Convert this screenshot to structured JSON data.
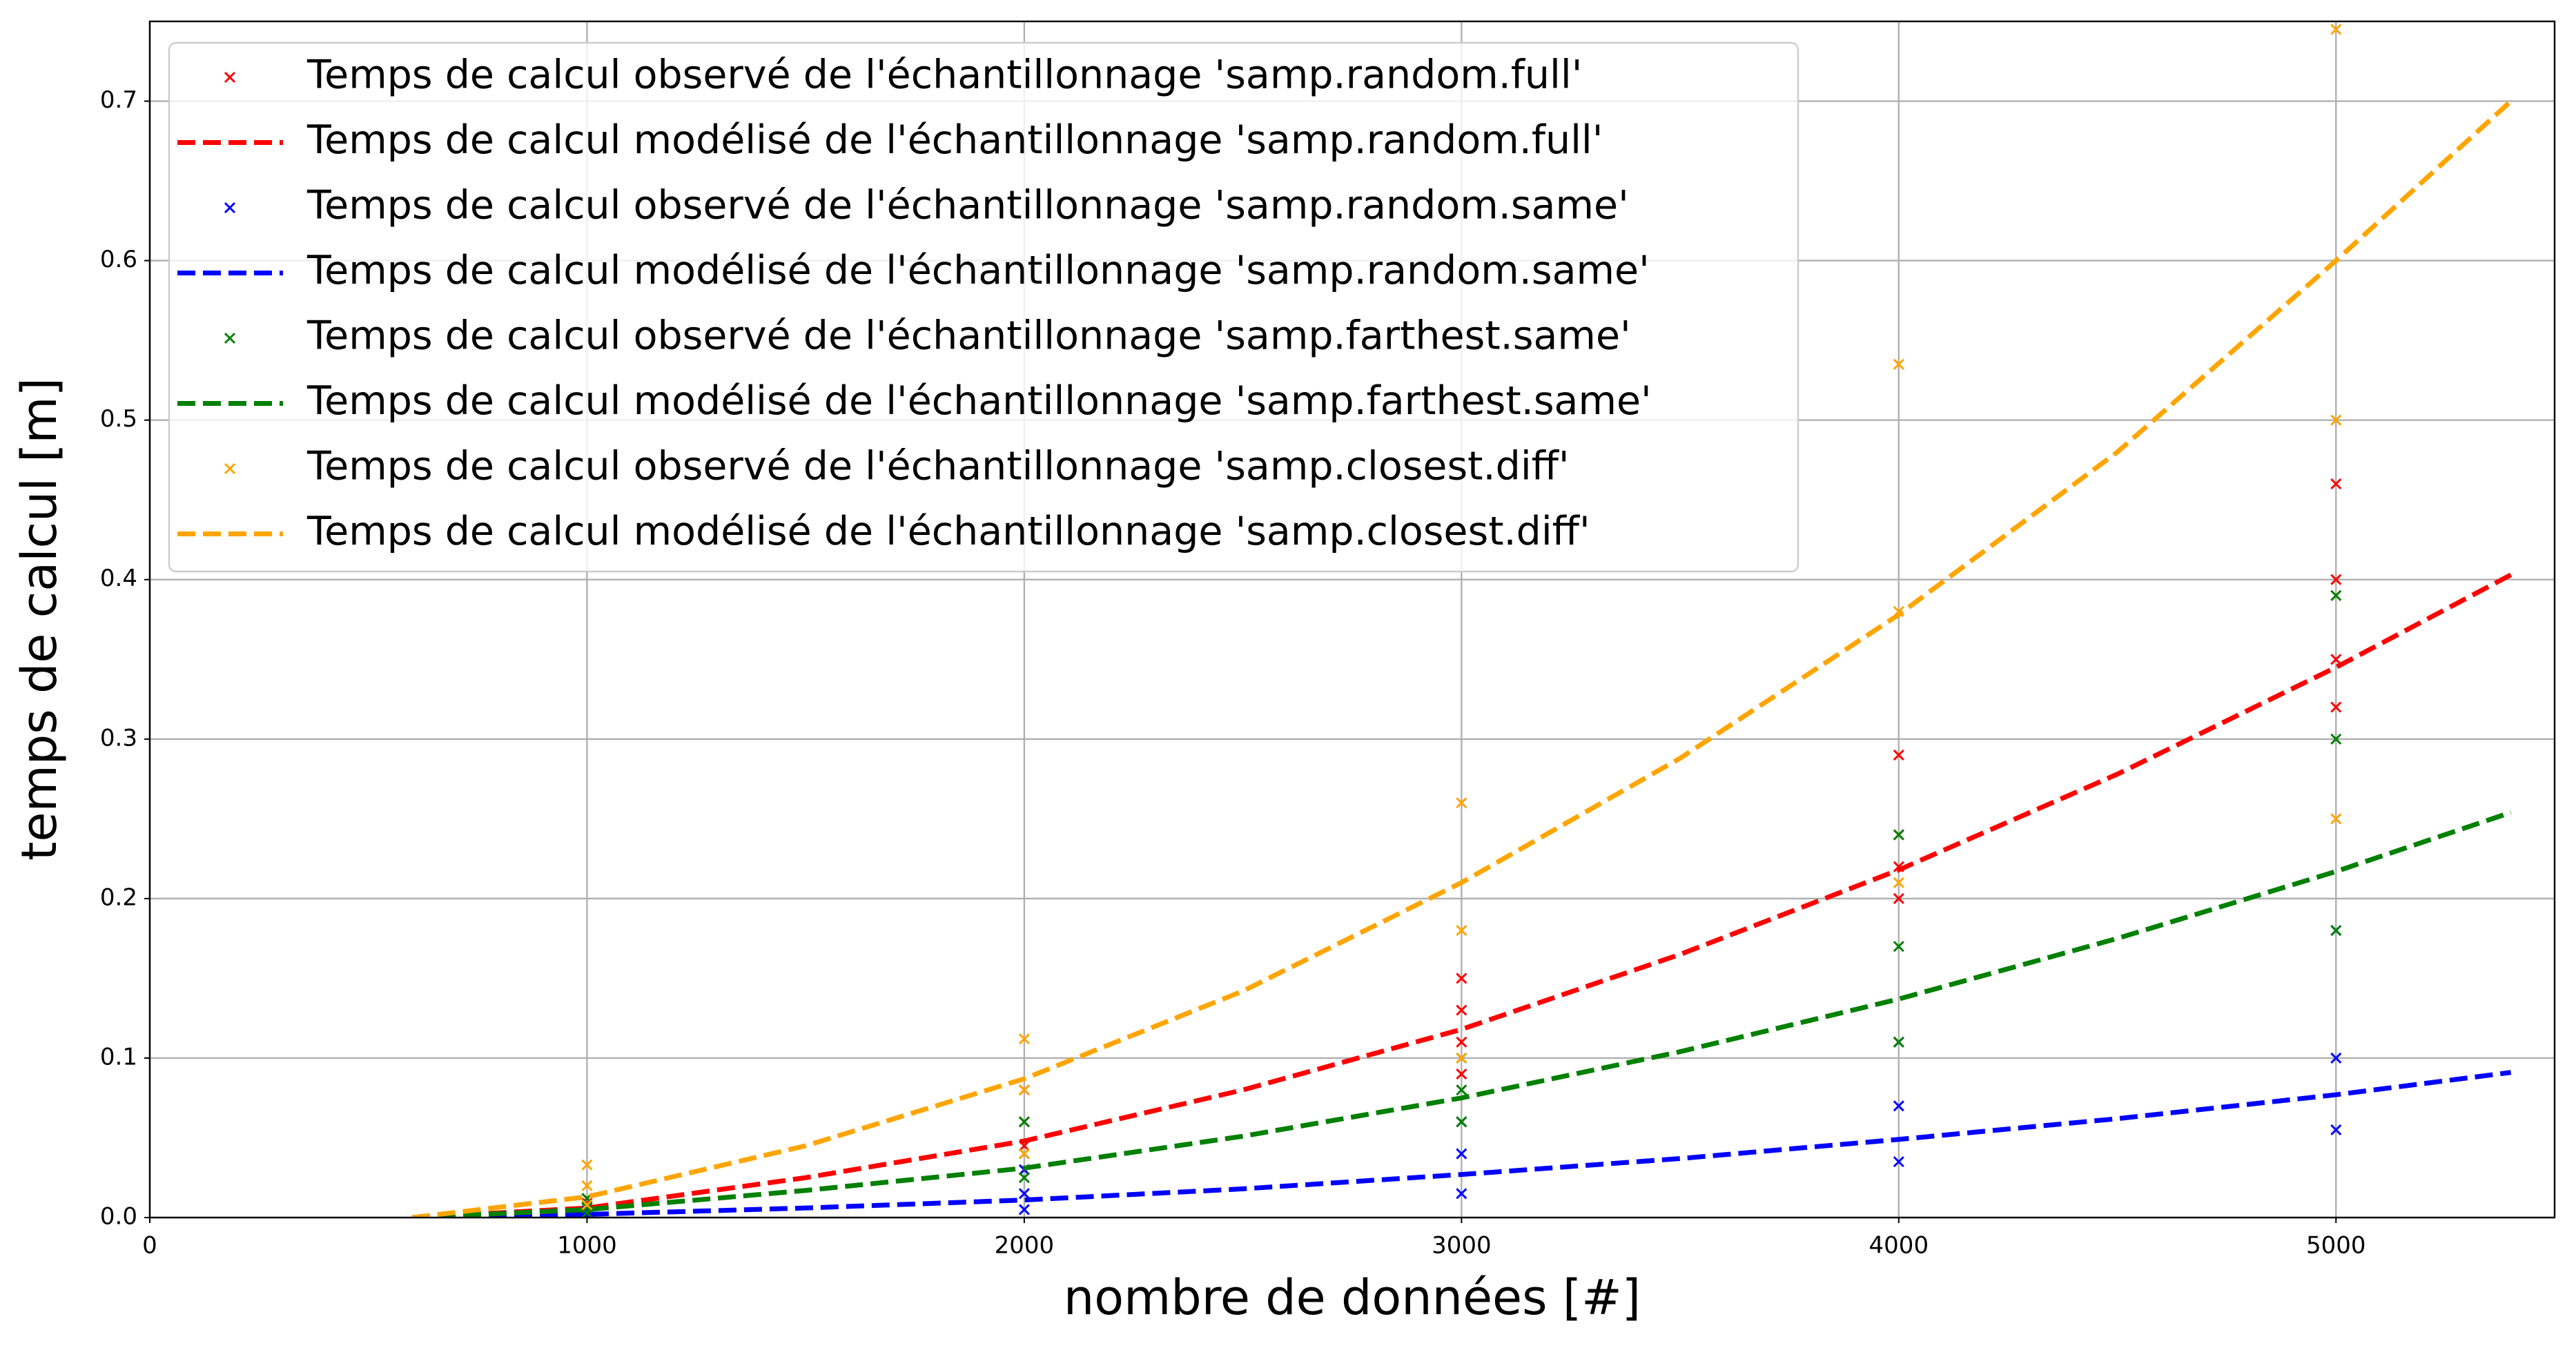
{
  "chart_data": {
    "type": "line",
    "xlabel": "nombre de données [#]",
    "ylabel": "temps de calcul [m]",
    "xlim": [
      0,
      5500
    ],
    "ylim": [
      0,
      0.75
    ],
    "xticks": [
      0,
      1000,
      2000,
      3000,
      4000,
      5000
    ],
    "yticks": [
      {
        "value": 0,
        "label": "0.0"
      },
      0.1,
      0.2,
      0.3,
      0.4,
      0.5,
      0.6,
      0.7
    ],
    "grid": true,
    "legend": "upper left",
    "series": [
      {
        "name": "Temps de calcul observé de l'échantillonnage 'samp.random.full'",
        "type": "scatter",
        "color": "#ff0000",
        "x": [
          1000,
          1000,
          1000,
          1000,
          2000,
          2000,
          2000,
          2000,
          3000,
          3000,
          3000,
          3000,
          4000,
          4000,
          4000,
          4000,
          5000,
          5000,
          5000,
          5000
        ],
        "values": [
          0.004,
          0.006,
          0.009,
          0.012,
          0.03,
          0.045,
          0.06,
          0.08,
          0.09,
          0.11,
          0.13,
          0.15,
          0.2,
          0.22,
          0.24,
          0.29,
          0.32,
          0.35,
          0.4,
          0.46
        ]
      },
      {
        "name": "Temps de calcul modélisé de l'échantillonnage 'samp.random.full'",
        "type": "line",
        "color": "#ff0000",
        "x": [
          600,
          1000,
          1500,
          2000,
          2500,
          3000,
          3500,
          4000,
          4500,
          5000,
          5400
        ],
        "values": [
          0,
          0.006,
          0.025,
          0.048,
          0.08,
          0.118,
          0.165,
          0.218,
          0.278,
          0.345,
          0.403
        ]
      },
      {
        "name": "Temps de calcul observé de l'échantillonnage 'samp.random.same'",
        "type": "scatter",
        "color": "#0000ff",
        "x": [
          1000,
          1000,
          1000,
          2000,
          2000,
          2000,
          3000,
          3000,
          3000,
          4000,
          4000,
          4000,
          5000,
          5000,
          5000
        ],
        "values": [
          0.001,
          0.002,
          0.004,
          0.005,
          0.015,
          0.03,
          0.015,
          0.04,
          0.06,
          0.035,
          0.07,
          0.11,
          0.055,
          0.1,
          0.18
        ]
      },
      {
        "name": "Temps de calcul modélisé de l'échantillonnage 'samp.random.same'",
        "type": "line",
        "color": "#0000ff",
        "x": [
          600,
          1000,
          1500,
          2000,
          2500,
          3000,
          3500,
          4000,
          4500,
          5000,
          5400
        ],
        "values": [
          0,
          0.002,
          0.006,
          0.011,
          0.018,
          0.027,
          0.037,
          0.049,
          0.062,
          0.077,
          0.091
        ]
      },
      {
        "name": "Temps de calcul observé de l'échantillonnage 'samp.farthest.same'",
        "type": "scatter",
        "color": "#008000",
        "x": [
          1000,
          1000,
          1000,
          2000,
          2000,
          2000,
          3000,
          3000,
          3000,
          4000,
          4000,
          4000,
          5000,
          5000,
          5000
        ],
        "values": [
          0.003,
          0.006,
          0.012,
          0.025,
          0.04,
          0.06,
          0.06,
          0.08,
          0.1,
          0.11,
          0.17,
          0.24,
          0.18,
          0.3,
          0.39
        ]
      },
      {
        "name": "Temps de calcul modélisé de l'échantillonnage 'samp.farthest.same'",
        "type": "line",
        "color": "#008000",
        "x": [
          600,
          1000,
          1500,
          2000,
          2500,
          3000,
          3500,
          4000,
          4500,
          5000,
          5400
        ],
        "values": [
          0,
          0.005,
          0.017,
          0.031,
          0.051,
          0.075,
          0.104,
          0.137,
          0.175,
          0.217,
          0.254
        ]
      },
      {
        "name": "Temps de calcul observé de l'échantillonnage 'samp.closest.diff'",
        "type": "scatter",
        "color": "#ffa500",
        "x": [
          1000,
          1000,
          1000,
          2000,
          2000,
          2000,
          3000,
          3000,
          3000,
          4000,
          4000,
          4000,
          5000,
          5000,
          5000
        ],
        "values": [
          0.008,
          0.02,
          0.033,
          0.04,
          0.08,
          0.112,
          0.1,
          0.18,
          0.26,
          0.21,
          0.38,
          0.535,
          0.25,
          0.5,
          0.745
        ]
      },
      {
        "name": "Temps de calcul modélisé de l'échantillonnage 'samp.closest.diff'",
        "type": "line",
        "color": "#ffa500",
        "x": [
          600,
          1000,
          1500,
          2000,
          2500,
          3000,
          3500,
          4000,
          4500,
          5000,
          5400
        ],
        "values": [
          0,
          0.013,
          0.045,
          0.087,
          0.142,
          0.21,
          0.288,
          0.378,
          0.48,
          0.6,
          0.7
        ]
      }
    ]
  }
}
